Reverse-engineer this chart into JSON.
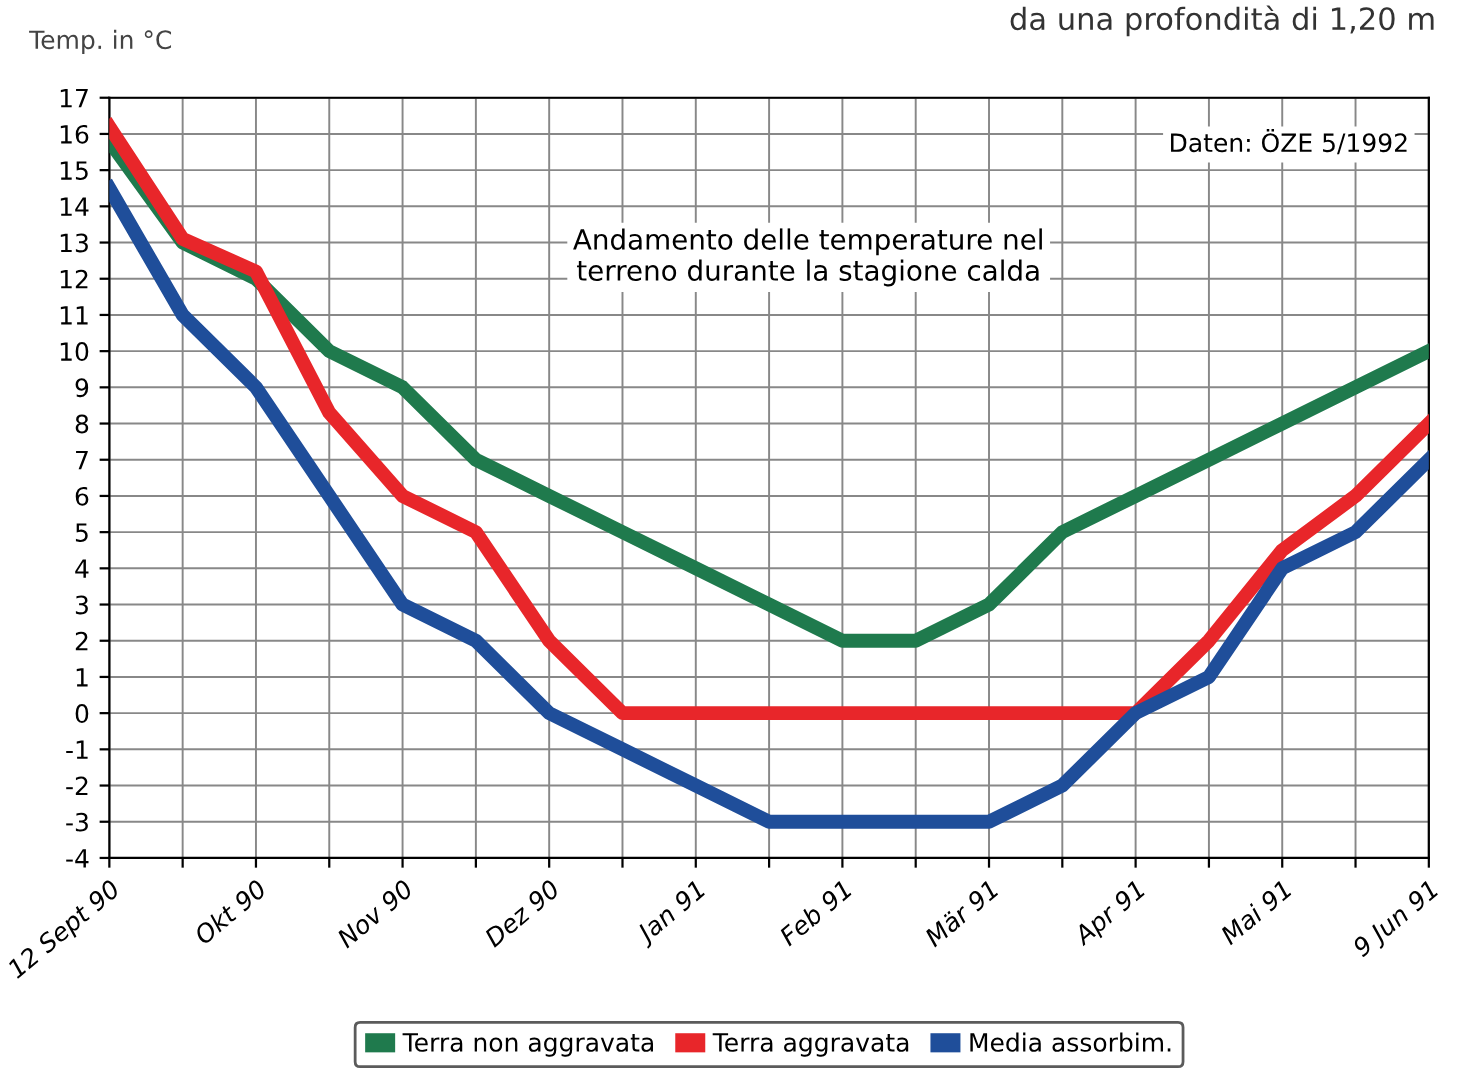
{
  "chart_data": {
    "type": "line",
    "subtitle": "da una profondità di 1,20 m",
    "ylabel": "Temp. in °C",
    "categories": [
      "12 Sept 90",
      null,
      "Okt 90",
      null,
      "Nov 90",
      null,
      "Dez 90",
      null,
      "Jan 91",
      null,
      "Feb 91",
      null,
      "Mär 91",
      null,
      "Apr 91",
      null,
      "Mai 91",
      null,
      "9 Jun 91"
    ],
    "series": [
      {
        "name": "Terra non aggravata",
        "color": "#1f7a4d",
        "values": [
          15.8,
          13,
          12,
          10,
          9,
          7,
          6,
          5,
          4,
          3,
          2,
          2,
          3,
          5,
          6,
          7,
          8,
          9,
          10
        ]
      },
      {
        "name": "Terra aggravata",
        "color": "#e8262a",
        "values": [
          16.2,
          13.1,
          12.2,
          8.3,
          6,
          5,
          2,
          0,
          0,
          0,
          0,
          0,
          0,
          0,
          0,
          2,
          4.5,
          6,
          8
        ]
      },
      {
        "name": "Media assorbim.",
        "color": "#1f4e9a",
        "values": [
          14.5,
          11,
          9,
          6,
          3,
          2,
          0,
          -1,
          -2,
          -3,
          -3,
          -3,
          -3,
          -2,
          0,
          1,
          4,
          5,
          7
        ]
      }
    ],
    "ylim": [
      -4,
      17
    ],
    "yticks": [
      -4,
      -3,
      -2,
      -1,
      0,
      1,
      2,
      3,
      4,
      5,
      6,
      7,
      8,
      9,
      10,
      11,
      12,
      13,
      14,
      15,
      16,
      17
    ],
    "grid": true,
    "legend": "bottom",
    "marker": "none",
    "line_style": "solid",
    "annotations": [
      "Daten: ÖZE 5/1992",
      "Andamento delle temperature nel\nterreno durante la stagione calda"
    ]
  }
}
